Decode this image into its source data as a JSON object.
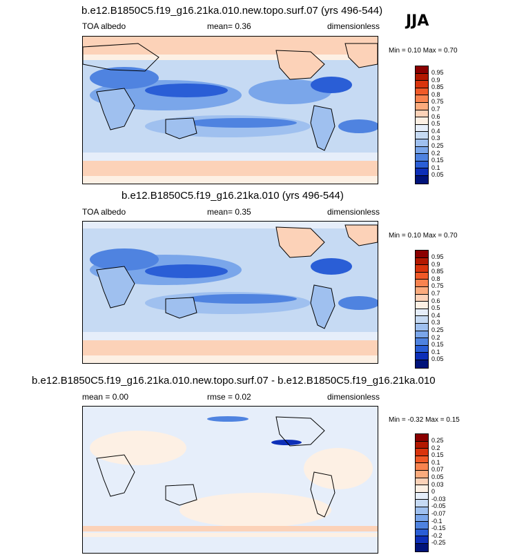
{
  "season": "JJA",
  "panels": [
    {
      "title": "b.e12.B1850C5.f19_g16.21ka.010.new.topo.surf.07 (yrs 496-544)",
      "left_label": "TOA albedo",
      "center_label": "mean=   0.36",
      "right_label": "dimensionless",
      "minmax": "Min =   0.10 Max =   0.70"
    },
    {
      "title": "b.e12.B1850C5.f19_g16.21ka.010 (yrs 496-544)",
      "left_label": "TOA albedo",
      "center_label": "mean=   0.35",
      "right_label": "dimensionless",
      "minmax": "Min =   0.10 Max =   0.70"
    },
    {
      "title": "b.e12.B1850C5.f19_g16.21ka.010.new.topo.surf.07 - b.e12.B1850C5.f19_g16.21ka.010",
      "left_label": "mean =   0.00",
      "center_label": "rmse =   0.02",
      "right_label": "dimensionless",
      "minmax": "Min =  -0.32 Max =   0.15"
    }
  ],
  "colorbar_abs": {
    "labels": [
      "0.95",
      "0.9",
      "0.85",
      "0.8",
      "0.75",
      "0.7",
      "0.6",
      "0.5",
      "0.4",
      "0.3",
      "0.25",
      "0.2",
      "0.15",
      "0.1",
      "0.05"
    ],
    "colors": [
      "#8b0000",
      "#b31800",
      "#d9340d",
      "#f05a28",
      "#f8834f",
      "#fbab7d",
      "#fcd2b8",
      "#fdf0e4",
      "#e6eefa",
      "#c6daf3",
      "#9fc0ef",
      "#7aa6ea",
      "#4f83e0",
      "#2a5ed6",
      "#0d2fb8",
      "#00137a"
    ]
  },
  "colorbar_diff": {
    "labels": [
      "0.25",
      "0.2",
      "0.15",
      "0.1",
      "0.07",
      "0.05",
      "0.03",
      "0",
      "-0.03",
      "-0.05",
      "-0.07",
      "-0.1",
      "-0.15",
      "-0.2",
      "-0.25"
    ],
    "colors": [
      "#8b0000",
      "#b31800",
      "#d9340d",
      "#f05a28",
      "#f8834f",
      "#fbab7d",
      "#fcd2b8",
      "#fdf0e4",
      "#e6eefa",
      "#c6daf3",
      "#9fc0ef",
      "#7aa6ea",
      "#4f83e0",
      "#2a5ed6",
      "#0d2fb8",
      "#00137a"
    ]
  }
}
